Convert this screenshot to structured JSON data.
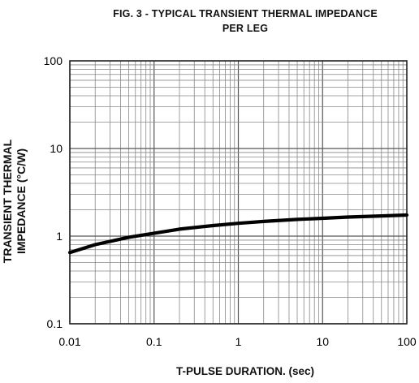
{
  "chart_data": {
    "type": "line",
    "title": "FIG. 3 - TYPICAL TRANSIENT THERMAL IMPEDANCE",
    "subtitle": "PER LEG",
    "xlabel": "T-PULSE DURATION. (sec)",
    "ylabel_line1": "TRANSIENT THERMAL",
    "ylabel_line2": "IMPEDANCE (°C/W)",
    "xscale": "log",
    "yscale": "log",
    "xlim": [
      0.01,
      100
    ],
    "ylim": [
      0.1,
      100
    ],
    "grid": true,
    "x_ticks": [
      "0.01",
      "0.1",
      "1",
      "10",
      "100"
    ],
    "y_ticks": [
      "0.1",
      "1",
      "10",
      "100"
    ],
    "series": [
      {
        "x": [
          0.01,
          0.02,
          0.05,
          0.1,
          0.2,
          0.5,
          1,
          2,
          5,
          10,
          20,
          50,
          100
        ],
        "y": [
          0.65,
          0.8,
          0.97,
          1.08,
          1.2,
          1.32,
          1.4,
          1.47,
          1.55,
          1.6,
          1.65,
          1.7,
          1.74
        ]
      }
    ]
  }
}
